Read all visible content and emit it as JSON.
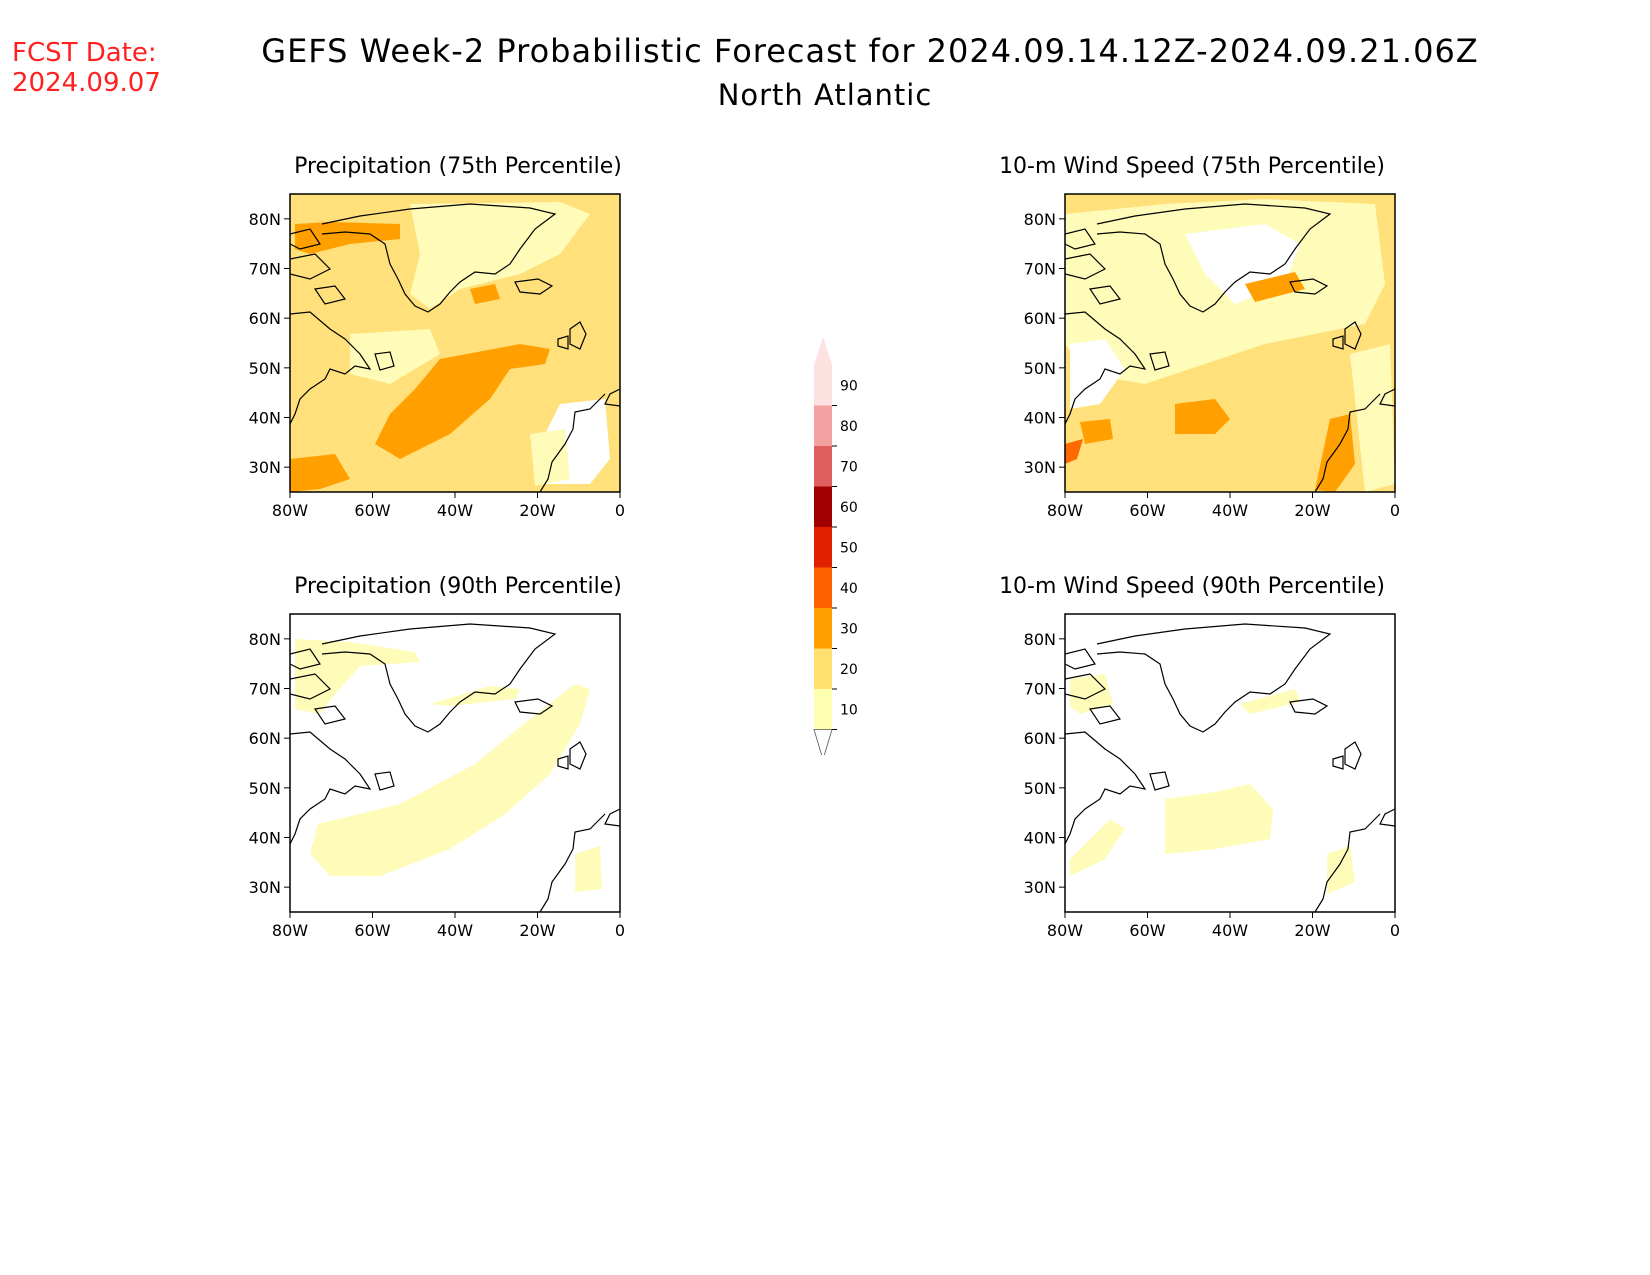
{
  "header": {
    "fcst_label": "FCST Date:",
    "fcst_date": "2024.09.07",
    "title": "GEFS Week-2 Probabilistic Forecast for 2024.09.14.12Z-2024.09.21.06Z",
    "region": "North Atlantic"
  },
  "panels": [
    {
      "title": "Precipitation (75th Percentile)"
    },
    {
      "title": "10-m Wind Speed (75th Percentile)"
    },
    {
      "title": "Precipitation (90th Percentile)"
    },
    {
      "title": "10-m Wind Speed (90th Percentile)"
    }
  ],
  "axes": {
    "lat_ticks": [
      "80N",
      "70N",
      "60N",
      "50N",
      "40N",
      "30N"
    ],
    "lon_ticks": [
      "80W",
      "60W",
      "40W",
      "20W",
      "0"
    ]
  },
  "colorbar": {
    "labels": [
      "90",
      "80",
      "70",
      "60",
      "50",
      "40",
      "30",
      "20",
      "10"
    ],
    "colors": [
      "#fde0e0",
      "#f4a0a0",
      "#e06060",
      "#a00000",
      "#e02000",
      "#ff6000",
      "#ffa000",
      "#ffe070",
      "#ffffb0"
    ]
  },
  "map_colors": {
    "c10": "#fffbb8",
    "c20": "#ffe07a",
    "c30": "#ffa000",
    "c40": "#ff6a00",
    "coast": "#000000"
  }
}
